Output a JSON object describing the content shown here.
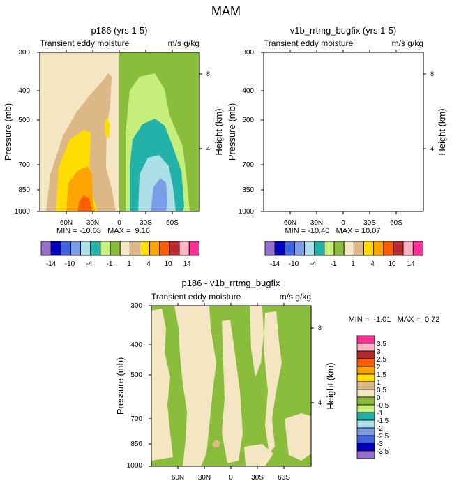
{
  "chart_data": {
    "type": "contour",
    "title": "MAM",
    "colors": {
      "m14": "#9570d1",
      "m12": "#0000c2",
      "m10": "#3e62e0",
      "m8": "#7b9de8",
      "m6": "#acdfe7",
      "m4": "#22b2aa",
      "m2": "#c5ee7a",
      "m1": "#8bbd3d",
      "p1": "#f5e6c3",
      "p2": "#ddb887",
      "p4": "#ffdd00",
      "p6": "#fca500",
      "p8": "#ff5b00",
      "p10": "#b8292e",
      "p12": "#ffb3c3",
      "p14": "#ff2d96"
    },
    "panels": [
      {
        "title": "p186 (yrs 1-5)",
        "left_label": "Transient eddy moisture",
        "right_label": "m/s g/kg",
        "ylabel": "Pressure (mb)",
        "y2label": "Height (km)",
        "pressure_ticks": [
          "300",
          "400",
          "500",
          "700",
          "850",
          "1000"
        ],
        "height_ticks": [
          "8",
          "4"
        ],
        "lat_ticks": [
          "60N",
          "30N",
          "0",
          "30S",
          "60S"
        ],
        "stats": "MIN = -10.08   MAX =  9.16"
      },
      {
        "title": "v1b_rrtmg_bugfix (yrs 1-5)",
        "left_label": "Transient eddy moisture",
        "right_label": "m/s g/kg",
        "ylabel": "Pressure (mb)",
        "y2label": "Height (km)",
        "pressure_ticks": [
          "300",
          "400",
          "500",
          "700",
          "850",
          "1000"
        ],
        "height_ticks": [
          "8",
          "4"
        ],
        "lat_ticks": [
          "60N",
          "30N",
          "0",
          "30S",
          "60S"
        ],
        "stats": "MIN = -10.40   MAX = 10.07"
      },
      {
        "title": "p186 - v1b_rrtmg_bugfix",
        "left_label": "Transient eddy moisture",
        "right_label": "m/s g/kg",
        "ylabel": "Pressure (mb)",
        "y2label": "Height (km)",
        "pressure_ticks": [
          "300",
          "400",
          "500",
          "700",
          "850",
          "1000"
        ],
        "height_ticks": [
          "8",
          "4"
        ],
        "lat_ticks": [
          "60N",
          "30N",
          "0",
          "30S",
          "60S"
        ],
        "stats": "MIN =  -1.01   MAX =  0.72"
      }
    ],
    "colorbar_top": {
      "labels": [
        "-14",
        "-10",
        "-4",
        "-1",
        "1",
        "4",
        "10",
        "14"
      ]
    },
    "colorbar_diff": {
      "labels": [
        "3.5",
        "3",
        "2.5",
        "2",
        "1.5",
        "1",
        "0.5",
        "0",
        "-0.5",
        "-1",
        "-1.5",
        "-2",
        "-2.5",
        "-3",
        "-3.5"
      ]
    }
  }
}
